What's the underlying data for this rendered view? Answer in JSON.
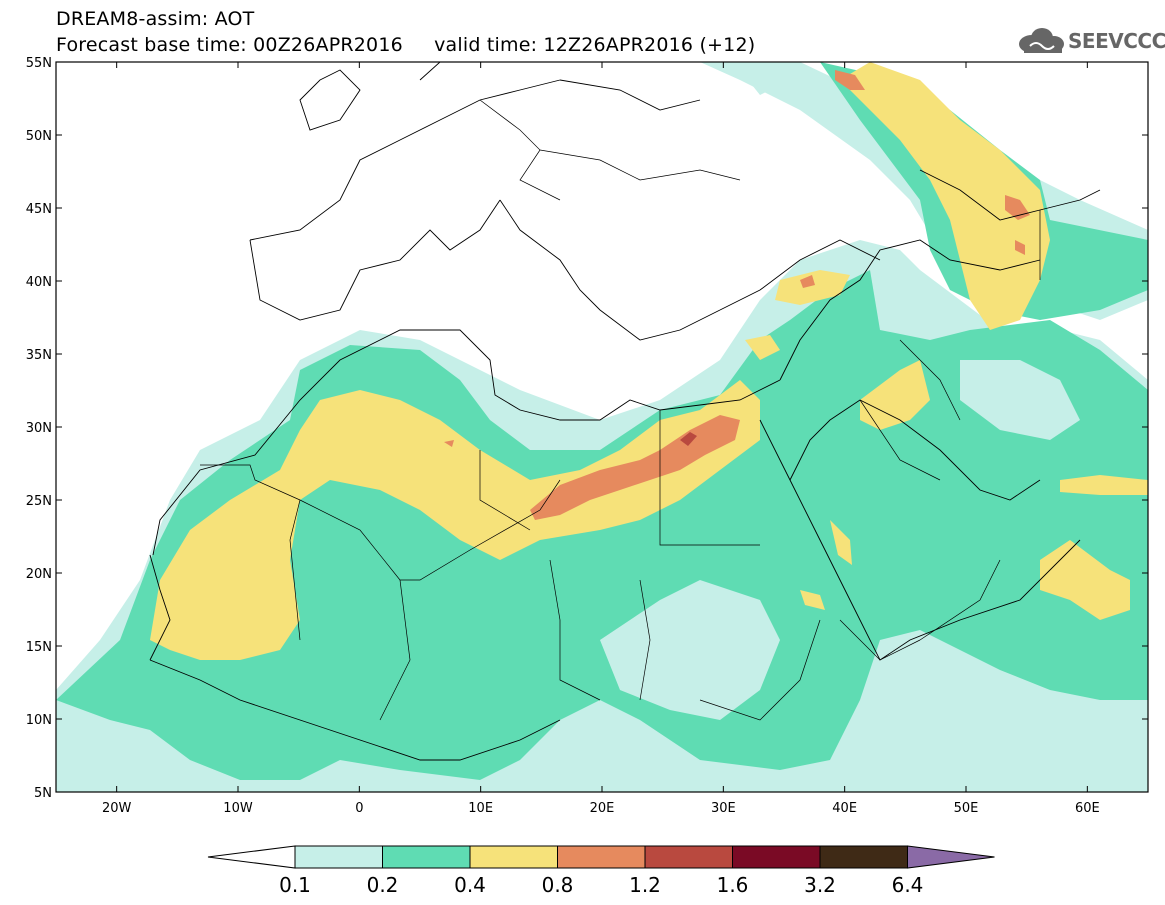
{
  "header": {
    "title_line1": "DREAM8-assim: AOT",
    "title_line2": "Forecast base time: 00Z26APR2016     valid time: 12Z26APR2016 (+12)",
    "logo_text": "SEEVCCC"
  },
  "map": {
    "extent": {
      "lon": [
        -25,
        65
      ],
      "lat": [
        5,
        55
      ]
    },
    "lat_labels": [
      "5N",
      "10N",
      "15N",
      "20N",
      "25N",
      "30N",
      "35N",
      "40N",
      "45N",
      "50N",
      "55N"
    ],
    "lon_labels": [
      "20W",
      "10W",
      "0",
      "10E",
      "20E",
      "30E",
      "40E",
      "50E",
      "60E"
    ],
    "lat_values": [
      5,
      10,
      15,
      20,
      25,
      30,
      35,
      40,
      45,
      50,
      55
    ],
    "lon_values": [
      -20,
      -10,
      0,
      10,
      20,
      30,
      40,
      50,
      60
    ]
  },
  "colorbar": {
    "labels": [
      "0.1",
      "0.2",
      "0.4",
      "0.8",
      "1.2",
      "1.6",
      "3.2",
      "6.4"
    ],
    "colors": [
      "#c6efe8",
      "#5fdcb3",
      "#f6e27a",
      "#e68a5e",
      "#b9493f",
      "#7a0a25",
      "#3f2a16",
      "#8a6aa6"
    ],
    "under_color": "#ffffff"
  }
}
